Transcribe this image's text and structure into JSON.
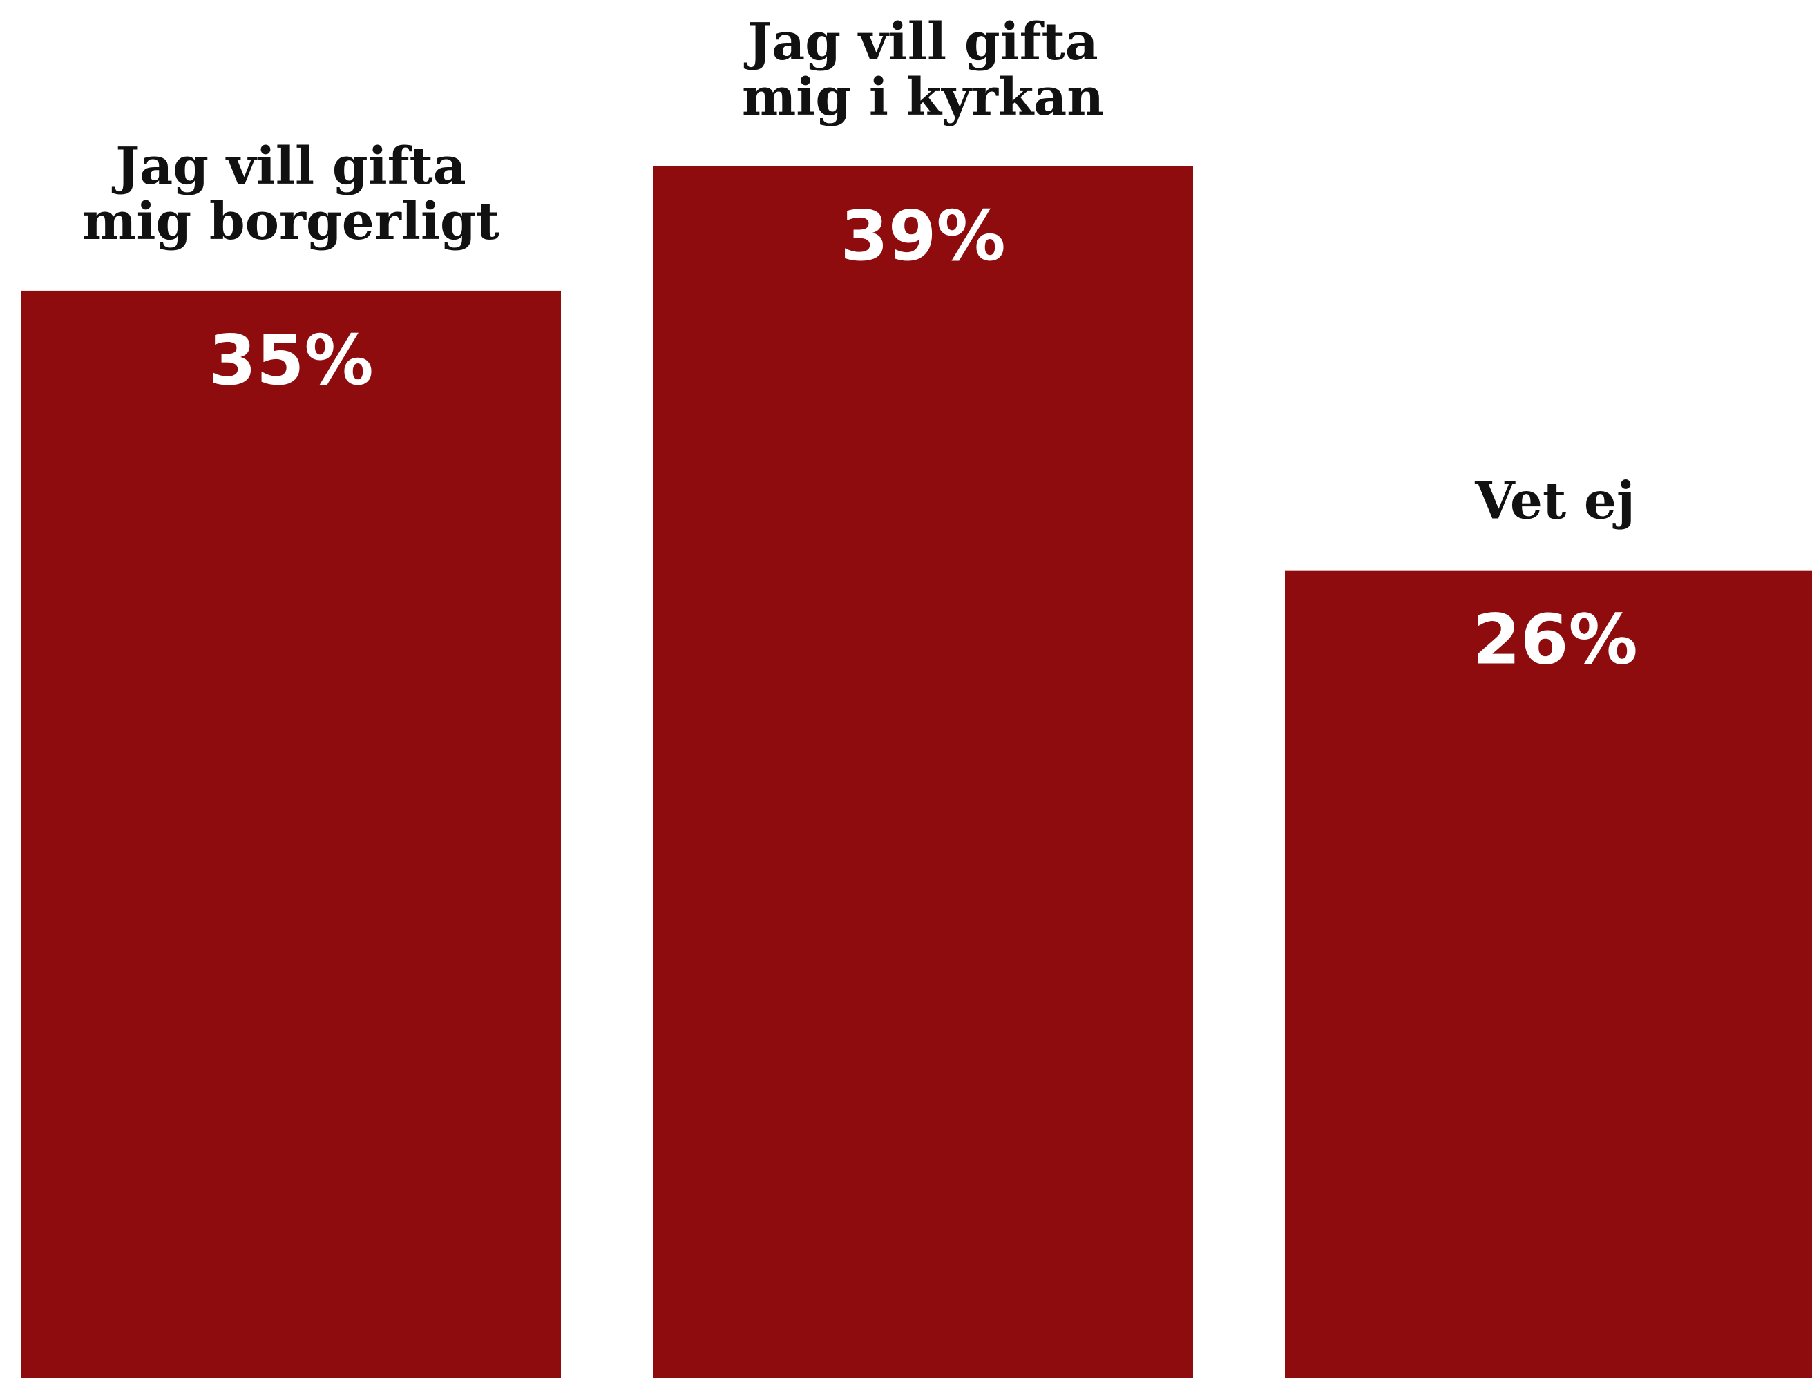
{
  "chart_data": {
    "type": "bar",
    "categories": [
      [
        "Jag vill gifta",
        "mig borgerligt"
      ],
      [
        "Jag vill gifta",
        "mig i kyrkan"
      ],
      [
        "Vet ej"
      ]
    ],
    "values": [
      35,
      39,
      26
    ],
    "value_labels": [
      "35%",
      "39%",
      "26%"
    ],
    "title": "",
    "xlabel": "",
    "ylabel": "",
    "ylim": [
      0,
      39
    ],
    "grid": false,
    "legend": "none",
    "bar_color": "#8f0c0e",
    "category_label_color": "#111111",
    "value_label_color": "#ffffff"
  }
}
